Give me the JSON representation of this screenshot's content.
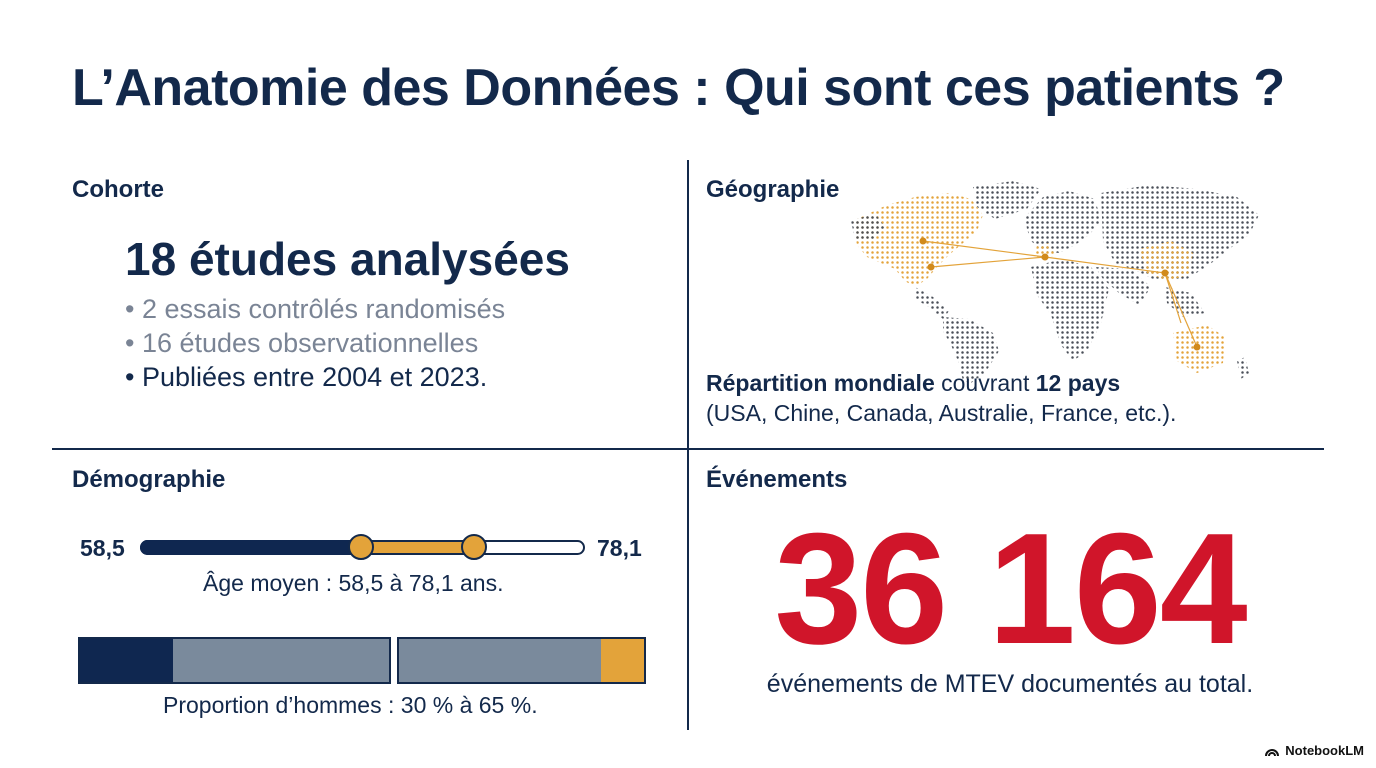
{
  "title": "L’Anatomie des Données : Qui sont ces patients ?",
  "cohorte": {
    "heading": "Cohorte",
    "count_label": "18 études analysées",
    "bullets": [
      "• 2 essais contrôlés randomisés",
      "• 16 études observationnelles",
      "• Publiées entre 2004 et 2023."
    ]
  },
  "geographie": {
    "heading": "Géographie",
    "summary_bold": "Répartition mondiale",
    "summary_mid": " couvrant ",
    "summary_count": "12 pays",
    "summary_line2": "(USA, Chine, Canada, Australie, France, etc.)."
  },
  "demographie": {
    "heading": "Démographie",
    "age_min_label": "58,5",
    "age_max_label": "78,1",
    "age_caption": "Âge moyen : 58,5 à 78,1 ans.",
    "proportion_min_pct": 30,
    "proportion_max_pct": 65,
    "proportion_caption": "Proportion d’hommes : 30 % à 65 %."
  },
  "evenements": {
    "heading": "Événements",
    "count": "36 164",
    "caption": "événements de MTEV documentés au total."
  },
  "brand": {
    "label": "NotebookLM",
    "icon": "notebooklm-logo-icon"
  },
  "colors": {
    "navy": "#13294b",
    "gold": "#e3a33a",
    "red": "#d0152a",
    "slate": "#7a8a9c",
    "muted_text": "#7a8495"
  }
}
